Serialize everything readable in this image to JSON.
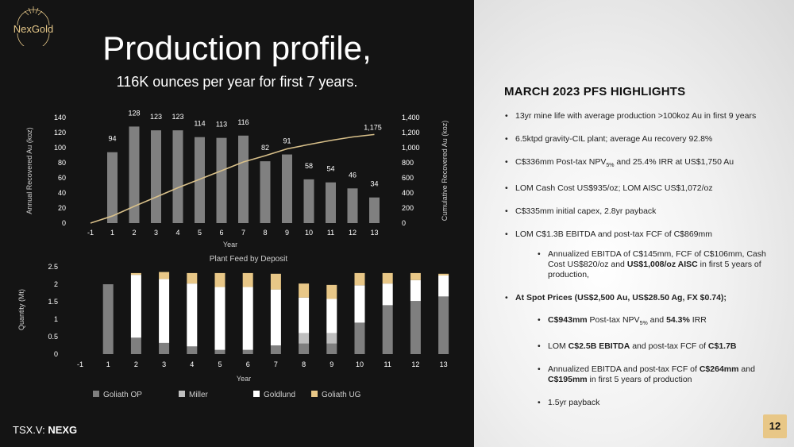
{
  "logo": {
    "text": "NexGold"
  },
  "title": "Production profile,",
  "subtitle": "116K ounces per year for first 7 years.",
  "ticker": {
    "prefix": "TSX.V:",
    "symbol": "NEXG"
  },
  "page_number": "12",
  "colors": {
    "bar_gray": "#808080",
    "goliath_op": "#7f7f7f",
    "miller": "#bfbfbf",
    "goldlund": "#ffffff",
    "goliath_ug": "#e8c787",
    "cumulative_line": "#d8c08a",
    "accent": "#e8c787"
  },
  "highlights": {
    "title": "MARCH 2023 PFS HIGHLIGHTS",
    "items": [
      {
        "pre": "13yr mine life with average production >100koz Au in first 9 years"
      },
      {
        "pre": "6.5ktpd gravity-CIL plant; average Au recovery 92.8%"
      },
      {
        "pre": "C$336mm Post-tax NPV",
        "sub": "5%",
        "post": " and 25.4% IRR at US$1,750 Au"
      },
      {
        "pre": "LOM Cash Cost US$935/oz; LOM AISC US$1,072/oz"
      },
      {
        "pre": "C$335mm initial capex, 2.8yr payback"
      },
      {
        "pre": "LOM C$1.3B EBITDA and post-tax FCF of C$869mm"
      }
    ],
    "sub_items": [
      {
        "pre": "Annualized EBITDA of C$145mm, FCF of C$106mm, Cash Cost US$820/oz and ",
        "bold": "US$1,008/oz AISC",
        "post": " in first 5 years of production,"
      }
    ],
    "spot_header": "At Spot Prices (US$2,500 Au, US$28.50 Ag, FX $0.74);",
    "spot_items": [
      {
        "b1": "C$943mm",
        "t1": " Post-tax NPV",
        "sub": "5%",
        "t2": " and ",
        "b2": "54.3%",
        "t3": " IRR"
      },
      {
        "t0": "LOM ",
        "b1": "C$2.5B EBITDA",
        "t1": " and post-tax FCF of ",
        "b2": "C$1.7B"
      },
      {
        "t0": "Annualized EBITDA and post-tax FCF of ",
        "b1": "C$264mm",
        "t1": " and ",
        "b2": "C$195mm",
        "t2": " in first 5 years of production"
      },
      {
        "t0": "1.5yr payback"
      }
    ]
  },
  "chart_data": [
    {
      "type": "bar",
      "title": "",
      "xlabel": "Year",
      "ylabel": "Annual Recovered Au (koz)",
      "y2label": "Cumulative Recovered Au (koz)",
      "categories": [
        "-1",
        "1",
        "2",
        "3",
        "4",
        "5",
        "6",
        "7",
        "8",
        "9",
        "10",
        "11",
        "12",
        "13"
      ],
      "ylim": [
        0,
        140
      ],
      "y_ticks": [
        "0",
        "20",
        "40",
        "60",
        "80",
        "100",
        "120",
        "140"
      ],
      "y2lim": [
        0,
        1400
      ],
      "y2_ticks": [
        "0",
        "200",
        "400",
        "600",
        "800",
        "1,000",
        "1,200",
        "1,400"
      ],
      "series": [
        {
          "kind": "bar",
          "values": [
            0,
            94,
            128,
            123,
            123,
            114,
            113,
            116,
            82,
            91,
            58,
            54,
            46,
            34
          ]
        },
        {
          "kind": "line",
          "axis": "right",
          "values": [
            0,
            94,
            222,
            345,
            468,
            582,
            695,
            811,
            893,
            984,
            1042,
            1096,
            1142,
            1175
          ]
        }
      ],
      "data_labels": [
        "",
        "94",
        "128",
        "123",
        "123",
        "114",
        "113",
        "116",
        "82",
        "91",
        "58",
        "54",
        "46",
        "34"
      ],
      "end_label": "1,175",
      "grid": false
    },
    {
      "type": "bar",
      "stacked": true,
      "title": "Plant Feed by Deposit",
      "xlabel": "Year",
      "ylabel": "Quantity (Mt)",
      "categories": [
        "-1",
        "1",
        "2",
        "3",
        "4",
        "5",
        "6",
        "7",
        "8",
        "9",
        "10",
        "11",
        "12",
        "13"
      ],
      "ylim": [
        0,
        2.5
      ],
      "y_ticks": [
        "0",
        "0.5",
        "1",
        "1.5",
        "2",
        "2.5"
      ],
      "series": [
        {
          "name": "Goliath OP",
          "values": [
            0,
            2.0,
            0.47,
            0.32,
            0.22,
            0.12,
            0.12,
            0.25,
            0.3,
            0.3,
            0.9,
            1.4,
            1.52,
            1.65
          ]
        },
        {
          "name": "Miller",
          "values": [
            0,
            0,
            0,
            0,
            0,
            0,
            0,
            0,
            0.3,
            0.3,
            0,
            0,
            0,
            0
          ]
        },
        {
          "name": "Goldlund",
          "values": [
            0,
            0,
            1.8,
            1.83,
            1.8,
            1.8,
            1.8,
            1.6,
            1.02,
            0.98,
            1.07,
            0.62,
            0.6,
            0.6
          ]
        },
        {
          "name": "Goliath UG",
          "values": [
            0,
            0,
            0.05,
            0.2,
            0.3,
            0.4,
            0.4,
            0.45,
            0.4,
            0.4,
            0.35,
            0.3,
            0.2,
            0.05
          ]
        }
      ],
      "legend": "bottom",
      "grid": false
    }
  ]
}
